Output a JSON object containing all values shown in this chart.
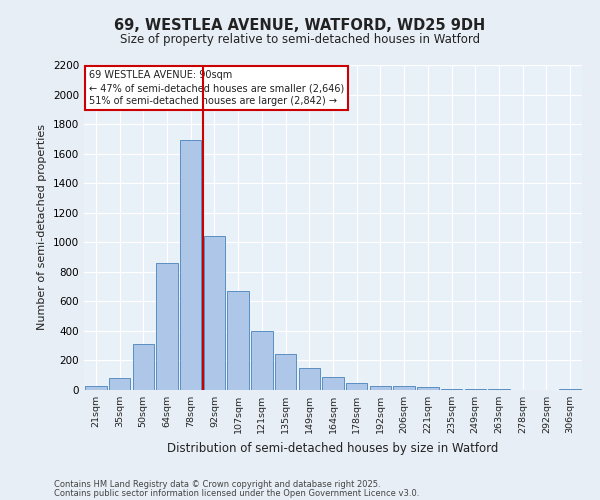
{
  "title1": "69, WESTLEA AVENUE, WATFORD, WD25 9DH",
  "title2": "Size of property relative to semi-detached houses in Watford",
  "xlabel": "Distribution of semi-detached houses by size in Watford",
  "ylabel": "Number of semi-detached properties",
  "bar_labels": [
    "21sqm",
    "35sqm",
    "50sqm",
    "64sqm",
    "78sqm",
    "92sqm",
    "107sqm",
    "121sqm",
    "135sqm",
    "149sqm",
    "164sqm",
    "178sqm",
    "192sqm",
    "206sqm",
    "221sqm",
    "235sqm",
    "249sqm",
    "263sqm",
    "278sqm",
    "292sqm",
    "306sqm"
  ],
  "bar_values": [
    25,
    80,
    310,
    860,
    1690,
    1040,
    670,
    400,
    245,
    150,
    85,
    45,
    30,
    25,
    20,
    10,
    10,
    5,
    3,
    2,
    5
  ],
  "bar_color": "#aec6e8",
  "bar_edge_color": "#5a8fc2",
  "vline_color": "#cc0000",
  "annotation_title": "69 WESTLEA AVENUE: 90sqm",
  "annotation_line1": "← 47% of semi-detached houses are smaller (2,646)",
  "annotation_line2": "51% of semi-detached houses are larger (2,842) →",
  "annotation_box_color": "#cc0000",
  "ylim": [
    0,
    2200
  ],
  "yticks": [
    0,
    200,
    400,
    600,
    800,
    1000,
    1200,
    1400,
    1600,
    1800,
    2000,
    2200
  ],
  "background_color": "#e8eef5",
  "plot_bg_color": "#e8f0f8",
  "grid_color": "#ffffff",
  "footer1": "Contains HM Land Registry data © Crown copyright and database right 2025.",
  "footer2": "Contains public sector information licensed under the Open Government Licence v3.0."
}
